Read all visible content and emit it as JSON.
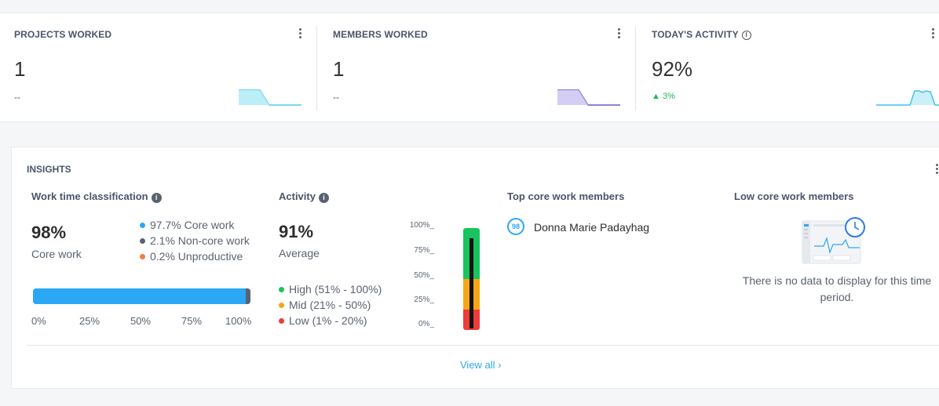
{
  "stats": [
    {
      "title": "PROJECTS WORKED",
      "value": "1",
      "sub": "--",
      "spark_color": "#4ccfe8",
      "spark_fill": "#b6ecf6"
    },
    {
      "title": "MEMBERS WORKED",
      "value": "1",
      "sub": "--",
      "spark_color": "#6a5acd",
      "spark_fill": "#cfc8f3"
    },
    {
      "title": "TODAY'S ACTIVITY",
      "value": "92%",
      "sub": "3%",
      "spark_color": "#3dc4e6",
      "spark_fill": "#c6eef8"
    }
  ],
  "insights": {
    "title": "INSIGHTS",
    "work_time": {
      "title": "Work time classification",
      "percent": "98%",
      "label": "Core work",
      "legend": [
        {
          "text": "97.7% Core work",
          "color": "#2aa8f5",
          "value": 97.7
        },
        {
          "text": "2.1% Non-core work",
          "color": "#5b6270",
          "value": 2.1
        },
        {
          "text": "0.2% Unproductive",
          "color": "#ee7d4a",
          "value": 0.2
        }
      ],
      "ticks": [
        "0%",
        "25%",
        "50%",
        "75%",
        "100%"
      ]
    },
    "activity": {
      "title": "Activity",
      "percent": "91%",
      "label": "Average",
      "legend": [
        {
          "text": "High (51% - 100%)",
          "color": "#18c45d"
        },
        {
          "text": "Mid (21% - 50%)",
          "color": "#f5a714"
        },
        {
          "text": "Low (1% - 20%)",
          "color": "#ee3b3b"
        }
      ],
      "gauge_labels": [
        "100%_",
        "75%_",
        "50%_",
        "25%_",
        "0%_"
      ],
      "gauge_level": 0.91
    },
    "top_members": {
      "title": "Top core work members",
      "members": [
        {
          "score": "98",
          "name": "Donna Marie Padayhag"
        }
      ]
    },
    "low_members": {
      "title": "Low core work members",
      "empty_text": "There is no data to display for this time period."
    },
    "view_all": "View all"
  }
}
